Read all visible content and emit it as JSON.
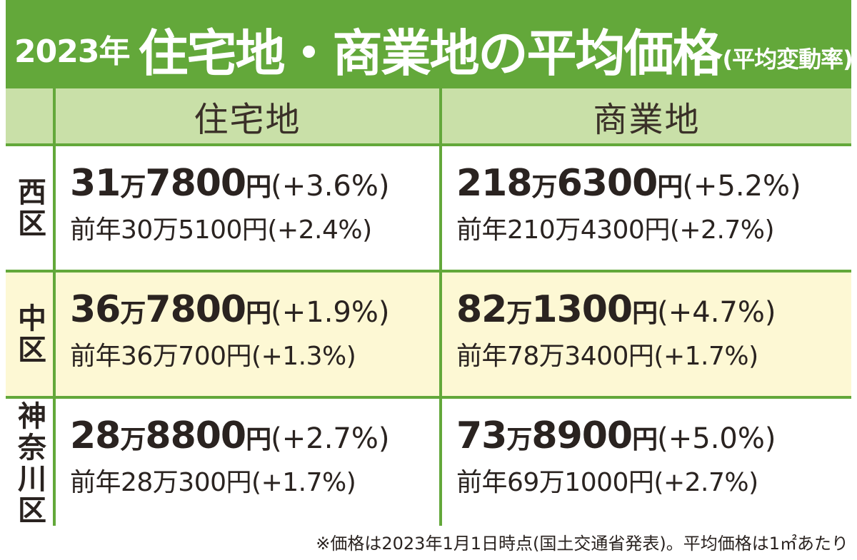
{
  "title": {
    "year": "2023年",
    "main": "住宅地・商業地の平均価格",
    "sub": "(平均変動率)"
  },
  "columns": [
    "住宅地",
    "商業地"
  ],
  "rows": [
    {
      "area": "西区",
      "residential": {
        "man": "31",
        "rest": "7800",
        "rate": "(+3.6%)",
        "prev": "前年30万5100円(+2.4%)"
      },
      "commercial": {
        "man": "218",
        "rest": "6300",
        "rate": "(+5.2%)",
        "prev": "前年210万4300円(+2.7%)"
      }
    },
    {
      "area": "中区",
      "residential": {
        "man": "36",
        "rest": "7800",
        "rate": "(+1.9%)",
        "prev": "前年36万700円(+1.3%)"
      },
      "commercial": {
        "man": "82",
        "rest": "1300",
        "rate": "(+4.7%)",
        "prev": "前年78万3400円(+1.7%)"
      }
    },
    {
      "area": "神奈川区",
      "residential": {
        "man": "28",
        "rest": "8800",
        "rate": "(+2.7%)",
        "prev": "前年28万300円(+1.7%)"
      },
      "commercial": {
        "man": "73",
        "rest": "8900",
        "rate": "(+5.0%)",
        "prev": "前年69万1000円(+2.7%)"
      }
    }
  ],
  "units": {
    "man": "万",
    "yen": "円"
  },
  "note": "※価格は2023年1月1日時点(国土交通省発表)。平均価格は1㎡あたり",
  "colors": {
    "green": "#63a83a",
    "header": "#c9e0a8",
    "highlight": "#fdf8d4"
  }
}
